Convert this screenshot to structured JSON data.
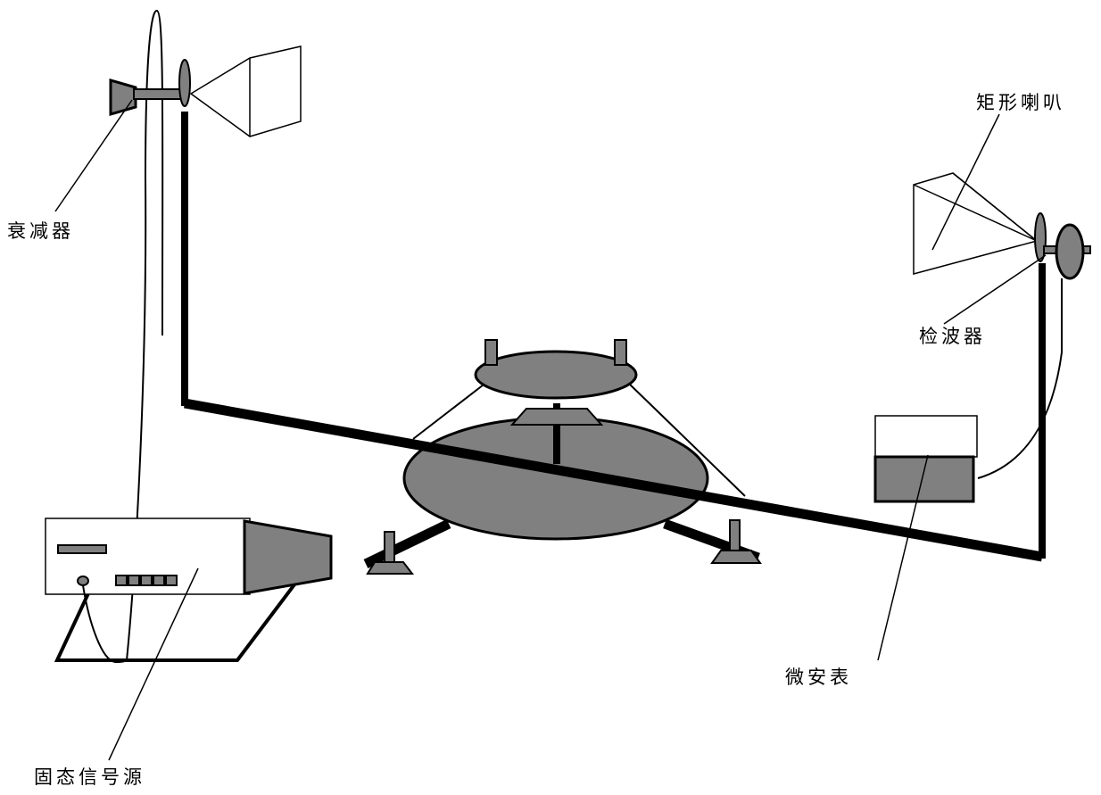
{
  "labels": {
    "attenuator": "衰减器",
    "rect_horn": "矩形喇叭",
    "detector": "检波器",
    "microammeter": "微安表",
    "signal_source": "固态信号源"
  },
  "colors": {
    "gray_fill": "#808080",
    "stroke": "#000000",
    "background": "#ffffff"
  },
  "icons": {
    "attenuator": "attenuator-icon",
    "rect_horn": "rectangular-horn-icon",
    "detector": "detector-icon",
    "microammeter": "microammeter-icon",
    "signal_source": "signal-source-icon",
    "turntable": "turntable-icon"
  }
}
